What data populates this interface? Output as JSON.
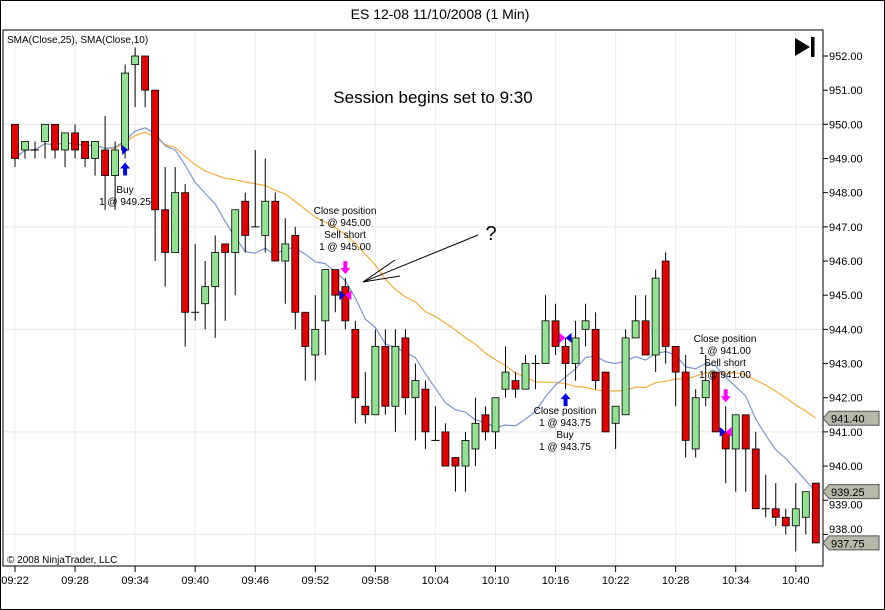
{
  "chart_data": {
    "type": "candlestick",
    "title": "ES 12-08  11/10/2008 (1 Min)",
    "indicator_legend": "SMA(Close,25), SMA(Close,10)",
    "copyright": "© 2008 NinjaTrader, LLC",
    "annotation": "Session begins set to 9:30",
    "question_mark": "?",
    "ylim": [
      937.3,
      952.8
    ],
    "y_ticks": [
      "952.00",
      "951.00",
      "950.00",
      "949.00",
      "948.00",
      "947.00",
      "946.00",
      "945.00",
      "944.00",
      "943.00",
      "942.00",
      "941.00",
      "940.00",
      "939.00",
      "938.00"
    ],
    "x_ticks": [
      "09:22",
      "09:28",
      "09:34",
      "09:40",
      "09:46",
      "09:52",
      "09:58",
      "10:04",
      "10:10",
      "10:16",
      "10:22",
      "10:28",
      "10:34",
      "10:40"
    ],
    "start_time": "09:22",
    "bar_fields": [
      "open",
      "high",
      "low",
      "close"
    ],
    "bars": [
      [
        950,
        950,
        948.75,
        949
      ],
      [
        949.25,
        949.5,
        949,
        949.5
      ],
      [
        949.25,
        949.5,
        949,
        949.25
      ],
      [
        949.5,
        950,
        949,
        950
      ],
      [
        950,
        950,
        949,
        949.25
      ],
      [
        949.25,
        949.75,
        948.75,
        949.75
      ],
      [
        949.75,
        950,
        949,
        949.25
      ],
      [
        949.5,
        949.5,
        948.75,
        949
      ],
      [
        949,
        949.5,
        948.5,
        949.5
      ],
      [
        949.25,
        950.25,
        947.5,
        948.5
      ],
      [
        948.5,
        949.5,
        947.5,
        949.25
      ],
      [
        949.25,
        951.75,
        949,
        951.5
      ],
      [
        951.75,
        952.25,
        950.5,
        952
      ],
      [
        952,
        952,
        950.5,
        951
      ],
      [
        951,
        951,
        946,
        947.5
      ],
      [
        947.5,
        948.75,
        945.25,
        946.25
      ],
      [
        946.25,
        948.75,
        946.25,
        948
      ],
      [
        948,
        948.25,
        943.5,
        944.5
      ],
      [
        944.5,
        946.5,
        944.25,
        944.5
      ],
      [
        944.75,
        946,
        944,
        945.25
      ],
      [
        945.25,
        946.75,
        943.75,
        946.25
      ],
      [
        946.5,
        946.5,
        944.25,
        946.25
      ],
      [
        946.25,
        947.5,
        945,
        947.5
      ],
      [
        947.75,
        948,
        946.25,
        946.75
      ],
      [
        947,
        949.25,
        947,
        947
      ],
      [
        946.75,
        949,
        946.25,
        947.75
      ],
      [
        947.75,
        948,
        946,
        946
      ],
      [
        946,
        947.25,
        944.75,
        946.5
      ],
      [
        946.75,
        947,
        944,
        944.5
      ],
      [
        944.5,
        944.5,
        942.5,
        943.5
      ],
      [
        943.25,
        945,
        942.5,
        944
      ],
      [
        944.25,
        945.75,
        943.25,
        945.75
      ],
      [
        945.75,
        945.75,
        944.5,
        945
      ],
      [
        945.25,
        945.5,
        944,
        944.25
      ],
      [
        944,
        944.25,
        941.25,
        942
      ],
      [
        941.75,
        942.75,
        941.25,
        941.5
      ],
      [
        941.5,
        944,
        941.5,
        943.5
      ],
      [
        943.5,
        944,
        941.5,
        941.75
      ],
      [
        941.75,
        944,
        941,
        943.5
      ],
      [
        943.75,
        944,
        941.5,
        942
      ],
      [
        942,
        943,
        940.75,
        942.5
      ],
      [
        942.25,
        942.5,
        940.5,
        941
      ],
      [
        940.75,
        941.75,
        940.75,
        940.75
      ],
      [
        941,
        941.25,
        940,
        940
      ],
      [
        940.25,
        940.25,
        939.25,
        940
      ],
      [
        940,
        941,
        939.25,
        940.75
      ],
      [
        940.5,
        942,
        940,
        941.25
      ],
      [
        941.5,
        941.75,
        940.75,
        941
      ],
      [
        941,
        942,
        940.5,
        942
      ],
      [
        942.25,
        943.5,
        942,
        942.75
      ],
      [
        942.5,
        942.75,
        942,
        942.25
      ],
      [
        942.25,
        943.25,
        942.25,
        943
      ],
      [
        943,
        943.25,
        942.25,
        943
      ],
      [
        943,
        945,
        943,
        944.25
      ],
      [
        944.25,
        944.75,
        943.25,
        943.5
      ],
      [
        943.5,
        943.75,
        942.25,
        943
      ],
      [
        943,
        944.25,
        942.5,
        943.75
      ],
      [
        944,
        944.75,
        943.5,
        944.25
      ],
      [
        944,
        944.5,
        942.25,
        942.5
      ],
      [
        942.75,
        942.75,
        941,
        941
      ],
      [
        941.25,
        941.75,
        940.5,
        941.75
      ],
      [
        941.5,
        944,
        941.5,
        943.75
      ],
      [
        943.75,
        945,
        943.75,
        944.25
      ],
      [
        944.25,
        945,
        943.25,
        943.25
      ],
      [
        943.25,
        945.75,
        942.75,
        945.5
      ],
      [
        946,
        946.25,
        943,
        943.5
      ],
      [
        943.5,
        943.5,
        941.75,
        942.75
      ],
      [
        942.75,
        943.25,
        940.25,
        940.75
      ],
      [
        940.5,
        942.25,
        940.25,
        942
      ],
      [
        942,
        943.25,
        941.75,
        942.5
      ],
      [
        942.75,
        942.75,
        941,
        941
      ],
      [
        941,
        941.75,
        939.5,
        940.5
      ],
      [
        940.5,
        941.5,
        939.25,
        941.5
      ],
      [
        941.5,
        941.5,
        939.25,
        940.5
      ],
      [
        940.5,
        941,
        938.75,
        938.75
      ],
      [
        938.75,
        939.75,
        938.5,
        938.75
      ],
      [
        938.75,
        939.5,
        938.25,
        938.5
      ],
      [
        938.5,
        938.75,
        938,
        938.25
      ],
      [
        938.25,
        939.5,
        937.5,
        938.75
      ],
      [
        938.5,
        939.25,
        938,
        939.25
      ],
      [
        939.5,
        939.5,
        937.75,
        937.75
      ]
    ],
    "indicators": [
      {
        "name": "SMA(Close,25)",
        "period": 25,
        "color": "#f0b040",
        "last_value": "941.40"
      },
      {
        "name": "SMA(Close,10)",
        "period": 10,
        "color": "#7f95cf",
        "last_value": "939.25"
      }
    ],
    "last_price": "937.75",
    "colors": {
      "up": "#93e193",
      "down": "#e00000",
      "long_marker": "#0000e0",
      "short_marker": "#ff00ff"
    },
    "trades": [
      {
        "time": "09:33",
        "side": "long",
        "price": 949.25,
        "lines": [
          "Buy",
          "1 @ 949.25"
        ]
      },
      {
        "time": "09:55",
        "side": "short",
        "price": 945.0,
        "lines": [
          "Close position",
          "1 @ 945.00",
          "Sell short",
          "1 @ 945.00"
        ]
      },
      {
        "time": "10:17",
        "side": "long",
        "price": 943.75,
        "lines": [
          "Close position",
          "1 @ 943.75",
          "Buy",
          "1 @ 943.75"
        ]
      },
      {
        "time": "10:33",
        "side": "short",
        "price": 941.0,
        "lines": [
          "Close position",
          "1 @ 941.00",
          "Sell short",
          "1 @ 941.00"
        ]
      }
    ],
    "scroll_end_icon": "skip-to-end-icon"
  }
}
